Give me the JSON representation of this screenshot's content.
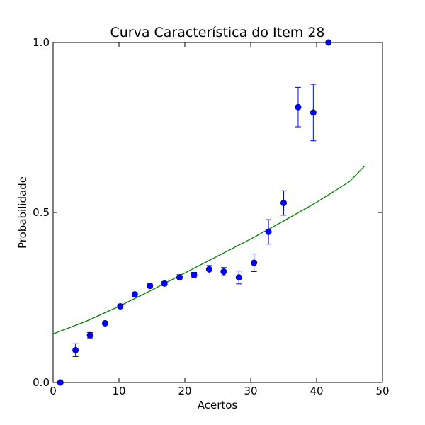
{
  "chart_data": {
    "type": "scatter",
    "title": "Curva Característica do Item 28",
    "xlabel": "Acertos",
    "ylabel": "Probabilidade",
    "xlim": [
      0,
      50
    ],
    "ylim": [
      0,
      1
    ],
    "x_ticks": [
      0,
      10,
      20,
      30,
      40,
      50
    ],
    "x_tick_labels": [
      "0",
      "10",
      "20",
      "30",
      "40",
      "50"
    ],
    "y_ticks": [
      0,
      0.5,
      1
    ],
    "y_tick_labels": [
      "0.0",
      "0.5",
      "1.0"
    ],
    "grid": false,
    "colors": {
      "points": "#0000ff",
      "curve": "#008000",
      "axes": "#000000"
    },
    "series": [
      {
        "kind": "points_with_error_bars",
        "x": [
          1.1,
          3.4,
          5.6,
          7.9,
          10.2,
          12.4,
          14.7,
          16.9,
          19.2,
          21.4,
          23.7,
          25.9,
          28.2,
          30.5,
          32.7,
          35.0,
          37.2,
          39.5,
          41.8
        ],
        "y": [
          0.0,
          0.095,
          0.139,
          0.174,
          0.224,
          0.259,
          0.284,
          0.291,
          0.309,
          0.316,
          0.333,
          0.326,
          0.309,
          0.352,
          0.443,
          0.528,
          0.81,
          0.794,
          1.0
        ],
        "err": [
          0.0,
          0.019,
          0.008,
          0.005,
          0.005,
          0.006,
          0.006,
          0.006,
          0.008,
          0.008,
          0.011,
          0.012,
          0.019,
          0.026,
          0.036,
          0.036,
          0.058,
          0.083,
          0.0
        ]
      },
      {
        "kind": "fitted_curve",
        "x": [
          0,
          5,
          10,
          15,
          20,
          25,
          30,
          35,
          40,
          45,
          47.3
        ],
        "y": [
          0.143,
          0.18,
          0.224,
          0.272,
          0.322,
          0.372,
          0.422,
          0.475,
          0.53,
          0.591,
          0.637
        ]
      }
    ]
  }
}
